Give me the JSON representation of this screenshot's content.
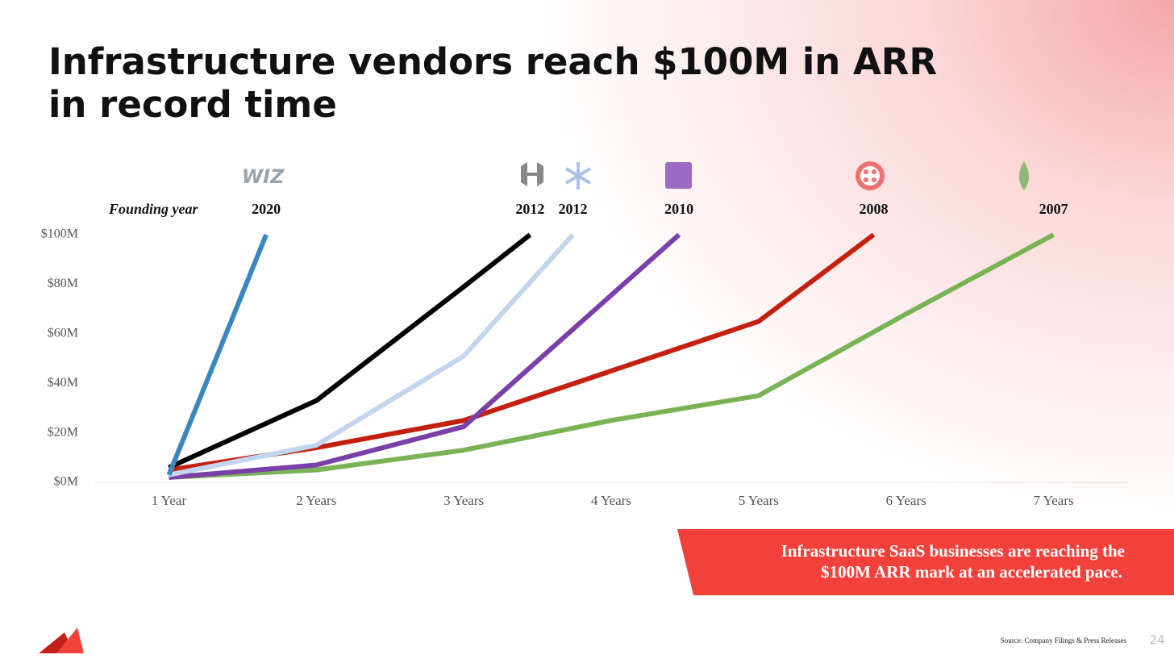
{
  "chart_data": {
    "type": "line",
    "title": [
      "Infrastructure vendors reach $100M in ARR",
      "in record time"
    ],
    "founding_label": "Founding year",
    "xlim": [
      0.5,
      7.5
    ],
    "xticks": [
      {
        "value": 1,
        "label": "1 Year"
      },
      {
        "value": 2,
        "label": "2 Years"
      },
      {
        "value": 3,
        "label": "3 Years"
      },
      {
        "value": 4,
        "label": "4 Years"
      },
      {
        "value": 5,
        "label": "5 Years"
      },
      {
        "value": 6,
        "label": "6 Years"
      },
      {
        "value": 7,
        "label": "7 Years"
      }
    ],
    "ylim": [
      0,
      100
    ],
    "yticks": [
      {
        "value": 0,
        "label": "$0M"
      },
      {
        "value": 20,
        "label": "$20M"
      },
      {
        "value": 40,
        "label": "$40M"
      },
      {
        "value": 60,
        "label": "$60M"
      },
      {
        "value": 80,
        "label": "$80M"
      },
      {
        "value": 100,
        "label": "$100M"
      }
    ],
    "series": [
      {
        "logo": "WIZ",
        "founded": "2020",
        "color": "#3a87c0",
        "x": [
          1,
          1.66
        ],
        "values": [
          3,
          100
        ]
      },
      {
        "founded": "2012",
        "color": "#000000",
        "x": [
          1,
          2,
          3,
          3.45
        ],
        "values": [
          6,
          33,
          79,
          100
        ]
      },
      {
        "founded": "2012",
        "color": "#c2d5ee",
        "x": [
          1,
          2,
          3,
          3.74
        ],
        "values": [
          3,
          15,
          51,
          100
        ]
      },
      {
        "founded": "2010",
        "color": "#7b3fa8",
        "x": [
          1,
          2,
          3,
          4.46
        ],
        "values": [
          2,
          7,
          22.5,
          100
        ]
      },
      {
        "founded": "2008",
        "color": "#c4200f",
        "x": [
          1,
          2,
          3,
          4,
          5,
          5.78
        ],
        "values": [
          5,
          14,
          25,
          45,
          65,
          100
        ]
      },
      {
        "founded": "2007",
        "color": "#7ab356",
        "x": [
          1,
          2,
          3,
          4,
          5,
          6,
          7
        ],
        "values": [
          2,
          5,
          13,
          25,
          35,
          68,
          100
        ]
      }
    ],
    "callout": [
      "Infrastructure SaaS businesses are reaching the",
      "$100M ARR mark at an accelerated pace."
    ],
    "source": "Source: Company Filings & Press Releases",
    "page_number": "24"
  }
}
